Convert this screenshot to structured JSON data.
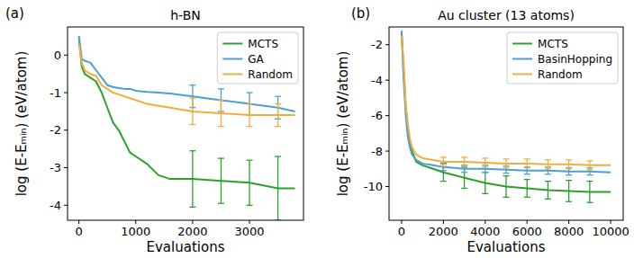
{
  "chart_data": [
    {
      "type": "line",
      "label": "(a)",
      "title": "h-BN",
      "xlabel": "Evaluations",
      "ylabel": "log (E-Eₘᵢₙ) (eV/atom)",
      "x": [
        0,
        50,
        100,
        200,
        300,
        400,
        500,
        600,
        700,
        800,
        900,
        1000,
        1200,
        1400,
        1600,
        2000,
        2500,
        3000,
        3500,
        3800
      ],
      "xlim": [
        -200,
        3950
      ],
      "xticks": [
        0,
        1000,
        2000,
        3000
      ],
      "ylim": [
        -4.4,
        0.75
      ],
      "yticks": [
        -4,
        -3,
        -2,
        -1,
        0
      ],
      "grid": false,
      "legend": "upper right",
      "series": [
        {
          "name": "MCTS",
          "color": "#2ca02c",
          "values": [
            0.5,
            -0.3,
            -0.5,
            -0.6,
            -0.7,
            -1.0,
            -1.4,
            -1.8,
            -2.0,
            -2.3,
            -2.6,
            -2.7,
            -2.9,
            -3.2,
            -3.3,
            -3.3,
            -3.35,
            -3.4,
            -3.55,
            -3.55
          ],
          "errors": [
            null,
            null,
            null,
            null,
            null,
            null,
            null,
            null,
            null,
            null,
            null,
            null,
            null,
            null,
            null,
            0.75,
            0.6,
            0.6,
            0.85,
            null
          ]
        },
        {
          "name": "GA",
          "color": "#4a9fd4",
          "values": [
            0.5,
            -0.1,
            -0.15,
            -0.2,
            -0.4,
            -0.6,
            -0.8,
            -0.85,
            -0.88,
            -0.9,
            -0.9,
            -0.95,
            -0.98,
            -1.0,
            -1.02,
            -1.1,
            -1.2,
            -1.3,
            -1.4,
            -1.5
          ],
          "errors": [
            null,
            null,
            null,
            null,
            null,
            null,
            null,
            null,
            null,
            null,
            null,
            null,
            null,
            null,
            null,
            0.3,
            0.3,
            0.3,
            0.3,
            null
          ]
        },
        {
          "name": "Random",
          "color": "#f0ad3c",
          "values": [
            0.3,
            -0.2,
            -0.4,
            -0.5,
            -0.55,
            -0.8,
            -0.9,
            -1.0,
            -1.05,
            -1.1,
            -1.15,
            -1.2,
            -1.3,
            -1.35,
            -1.4,
            -1.5,
            -1.55,
            -1.6,
            -1.6,
            -1.6
          ],
          "errors": [
            null,
            null,
            null,
            null,
            null,
            null,
            null,
            null,
            null,
            null,
            null,
            null,
            null,
            null,
            null,
            0.35,
            0.35,
            0.3,
            0.3,
            null
          ]
        }
      ]
    },
    {
      "type": "line",
      "label": "(b)",
      "title": "Au cluster (13 atoms)",
      "xlabel": "Evaluations",
      "ylabel": "log (E-Eₘᵢₙ) (eV/atom)",
      "x": [
        0,
        100,
        200,
        300,
        400,
        500,
        700,
        1000,
        1500,
        2000,
        3000,
        4000,
        5000,
        6000,
        7000,
        8000,
        9000,
        10000
      ],
      "xlim": [
        -600,
        10600
      ],
      "xticks": [
        0,
        2000,
        4000,
        6000,
        8000,
        10000
      ],
      "ylim": [
        -11.9,
        -1
      ],
      "yticks": [
        -10,
        -8,
        -6,
        -4,
        -2
      ],
      "grid": false,
      "legend": "upper right",
      "series": [
        {
          "name": "MCTS",
          "color": "#2ca02c",
          "values": [
            -1.3,
            -3.5,
            -5.5,
            -6.8,
            -7.5,
            -8.0,
            -8.6,
            -8.8,
            -9.0,
            -9.2,
            -9.5,
            -9.8,
            -10.0,
            -10.1,
            -10.2,
            -10.25,
            -10.3,
            -10.3
          ],
          "errors": [
            null,
            null,
            null,
            null,
            null,
            null,
            null,
            null,
            null,
            0.5,
            0.6,
            0.6,
            0.6,
            0.5,
            0.5,
            0.6,
            0.6,
            null
          ]
        },
        {
          "name": "BasinHopping",
          "color": "#4a9fd4",
          "values": [
            -1.2,
            -4.0,
            -6.0,
            -7.2,
            -7.8,
            -8.2,
            -8.5,
            -8.7,
            -8.8,
            -8.9,
            -9.0,
            -9.0,
            -9.05,
            -9.1,
            -9.1,
            -9.15,
            -9.15,
            -9.2
          ],
          "errors": [
            null,
            null,
            null,
            null,
            null,
            null,
            null,
            null,
            null,
            0.2,
            0.2,
            0.2,
            0.2,
            0.2,
            0.2,
            0.2,
            0.2,
            null
          ]
        },
        {
          "name": "Random",
          "color": "#f0ad3c",
          "values": [
            -1.5,
            -3.0,
            -5.5,
            -6.5,
            -7.3,
            -7.8,
            -8.2,
            -8.4,
            -8.5,
            -8.6,
            -8.6,
            -8.65,
            -8.7,
            -8.7,
            -8.75,
            -8.75,
            -8.8,
            -8.8
          ],
          "errors": [
            null,
            null,
            null,
            null,
            null,
            null,
            null,
            null,
            null,
            0.25,
            0.25,
            0.25,
            0.25,
            0.25,
            0.25,
            0.25,
            0.25,
            null
          ]
        }
      ]
    }
  ]
}
